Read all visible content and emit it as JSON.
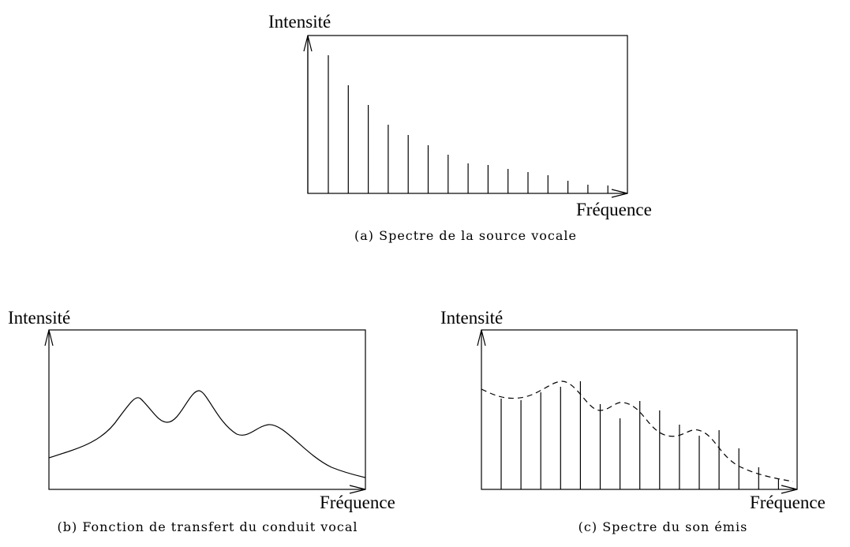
{
  "panels": [
    {
      "y_label": "Intensité",
      "x_label": "Fréquence",
      "caption": "(a) Spectre de la source vocale"
    },
    {
      "y_label": "Intensité",
      "x_label": "Fréquence",
      "caption": "(b) Fonction de transfert du conduit vocal"
    },
    {
      "y_label": "Intensité",
      "x_label": "Fréquence",
      "caption": "(c) Spectre du son émis"
    }
  ]
}
